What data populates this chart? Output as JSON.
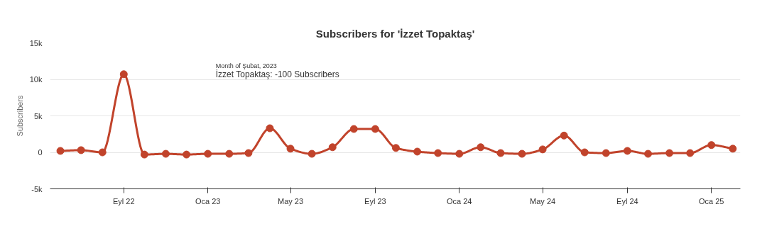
{
  "chart_data": {
    "type": "line",
    "title": "Subscribers for 'İzzet Topaktaş'",
    "ylabel": "Subscribers",
    "x": [
      "2022-06-01",
      "2022-07-01",
      "2022-08-01",
      "2022-09-01",
      "2022-10-01",
      "2022-11-01",
      "2022-12-01",
      "2023-01-01",
      "2023-02-01",
      "2023-03-01",
      "2023-04-01",
      "2023-05-01",
      "2023-06-01",
      "2023-07-01",
      "2023-08-01",
      "2023-09-01",
      "2023-10-01",
      "2023-11-01",
      "2023-12-01",
      "2024-01-01",
      "2024-02-01",
      "2024-03-01",
      "2024-04-01",
      "2024-05-01",
      "2024-06-01",
      "2024-07-01",
      "2024-08-01",
      "2024-09-01",
      "2024-10-01",
      "2024-11-01",
      "2024-12-01",
      "2025-01-01",
      "2025-02-01"
    ],
    "series": [
      {
        "color": "#c1432b",
        "values": [
          200,
          300,
          0,
          10700,
          -300,
          -200,
          -300,
          -200,
          -200,
          -100,
          3300,
          500,
          -200,
          700,
          3200,
          3200,
          600,
          100,
          -100,
          -200,
          700,
          -100,
          -200,
          400,
          2300,
          0,
          -100,
          200,
          -200,
          -100,
          -100,
          1000,
          500
        ]
      }
    ],
    "xlim": [
      "2022-05-17",
      "2025-02-12"
    ],
    "xticks": [
      {
        "value": "2022-09-01",
        "label": "Eyl 22"
      },
      {
        "value": "2023-01-01",
        "label": "Oca 23"
      },
      {
        "value": "2023-05-01",
        "label": "May 23"
      },
      {
        "value": "2023-09-01",
        "label": "Eyl 23"
      },
      {
        "value": "2024-01-01",
        "label": "Oca 24"
      },
      {
        "value": "2024-05-01",
        "label": "May 24"
      },
      {
        "value": "2024-09-01",
        "label": "Eyl 24"
      },
      {
        "value": "2025-01-01",
        "label": "Oca 25"
      }
    ],
    "ylim": [
      -5000,
      15000
    ],
    "yticks": [
      {
        "value": -5000,
        "label": "-5k"
      },
      0,
      {
        "value": 5000,
        "label": "5k"
      },
      {
        "value": 10000,
        "label": "10k"
      },
      {
        "value": 15000,
        "label": "15k"
      }
    ],
    "annotations": [
      "Month of Şubat, 2023",
      "İzzet Topaktaş: -100 Subscribers"
    ],
    "grid": "y",
    "marker": "circle",
    "line_style": "solid"
  }
}
